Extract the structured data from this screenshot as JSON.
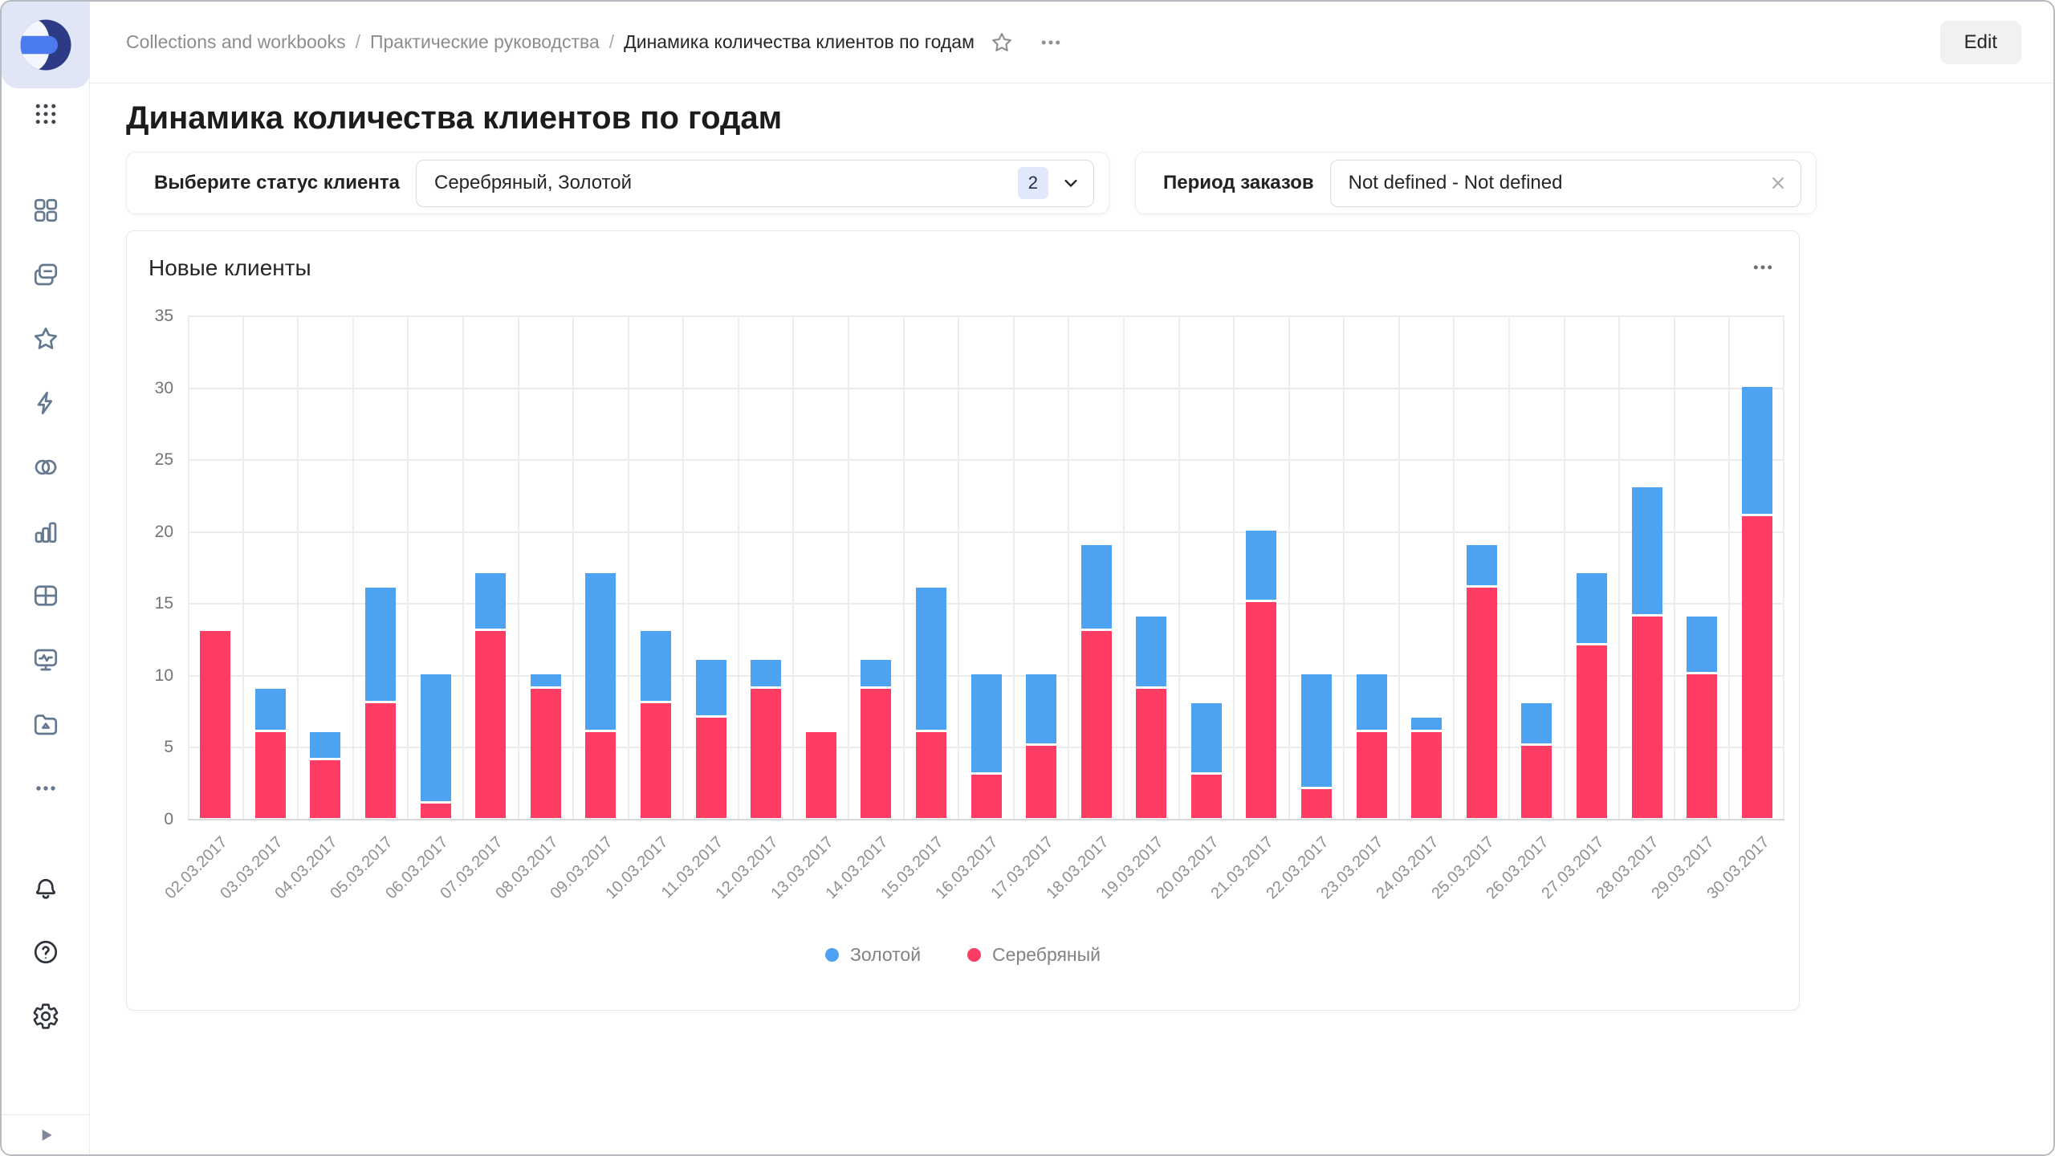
{
  "sidebar": {
    "icons": [
      "datalens-logo",
      "apps-grid",
      "objects",
      "collections",
      "favorites",
      "connections",
      "datasets",
      "charts",
      "dashboards",
      "monitoring",
      "storage",
      "more",
      "notifications",
      "help",
      "settings",
      "expand-panel"
    ]
  },
  "header": {
    "breadcrumb": [
      {
        "label": "Collections and workbooks"
      },
      {
        "label": "Практические руководства"
      },
      {
        "label": "Динамика количества клиентов по годам"
      }
    ],
    "separator": "/",
    "edit_label": "Edit"
  },
  "page": {
    "title": "Динамика количества клиентов по годам"
  },
  "filters": {
    "status": {
      "label": "Выберите статус клиента",
      "value": "Серебряный, Золотой",
      "count": "2"
    },
    "period": {
      "label": "Период заказов",
      "value": "Not defined - Not defined"
    }
  },
  "chart_card": {
    "title": "Новые клиенты"
  },
  "chart_data": {
    "type": "bar",
    "stacked": true,
    "title": "Новые клиенты",
    "categories": [
      "02.03.2017",
      "03.03.2017",
      "04.03.2017",
      "05.03.2017",
      "06.03.2017",
      "07.03.2017",
      "08.03.2017",
      "09.03.2017",
      "10.03.2017",
      "11.03.2017",
      "12.03.2017",
      "13.03.2017",
      "14.03.2017",
      "15.03.2017",
      "16.03.2017",
      "17.03.2017",
      "18.03.2017",
      "19.03.2017",
      "20.03.2017",
      "21.03.2017",
      "22.03.2017",
      "23.03.2017",
      "24.03.2017",
      "25.03.2017",
      "26.03.2017",
      "27.03.2017",
      "28.03.2017",
      "29.03.2017",
      "30.03.2017"
    ],
    "series": [
      {
        "name": "Золотой",
        "color": "#4DA2F1",
        "values": [
          0,
          3,
          2,
          8,
          9,
          4,
          1,
          11,
          5,
          4,
          2,
          0,
          2,
          10,
          7,
          5,
          6,
          5,
          5,
          5,
          8,
          4,
          1,
          3,
          3,
          5,
          9,
          4,
          9
        ]
      },
      {
        "name": "Серебряный",
        "color": "#FF3D64",
        "values": [
          13,
          6,
          4,
          8,
          1,
          13,
          9,
          6,
          8,
          7,
          9,
          6,
          9,
          6,
          3,
          5,
          13,
          9,
          3,
          15,
          2,
          6,
          6,
          16,
          5,
          12,
          14,
          10,
          21
        ]
      }
    ],
    "stack_order": [
      "Серебряный",
      "Золотой"
    ],
    "xlabel": "",
    "ylabel": "",
    "ylim": [
      0,
      35
    ],
    "yticks": [
      0,
      5,
      10,
      15,
      20,
      25,
      30,
      35
    ],
    "grid": true,
    "legend_position": "bottom"
  }
}
